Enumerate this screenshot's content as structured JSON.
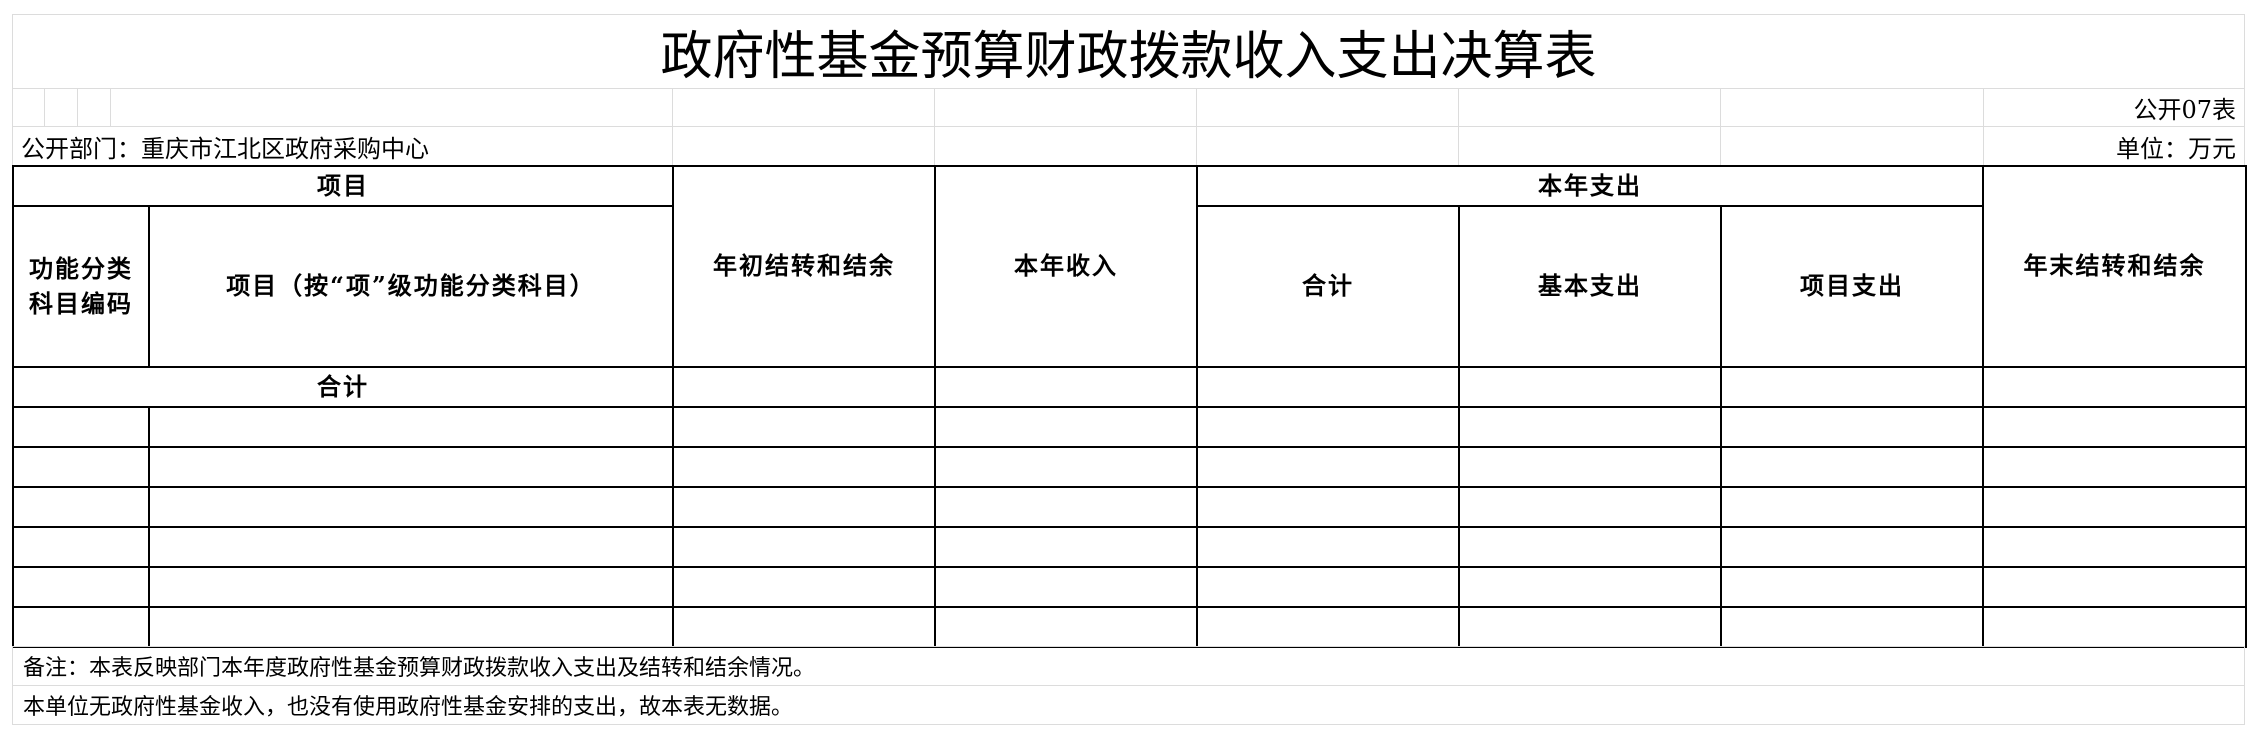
{
  "title": "政府性基金预算财政拨款收入支出决算表",
  "table_code": "公开07表",
  "department": "公开部门：重庆市江北区政府采购中心",
  "unit": "单位：万元",
  "headers": {
    "item_group": "项目",
    "func_code": "功能分类科目编码",
    "item_name": "项目（按“项”级功能分类科目）",
    "begin_balance": "年初结转和结余",
    "income": "本年收入",
    "expense_group": "本年支出",
    "expense_total": "合计",
    "basic_expense": "基本支出",
    "project_expense": "项目支出",
    "end_balance": "年末结转和结余"
  },
  "total_row_label": "合计",
  "rows": [
    [
      "",
      "",
      "",
      "",
      "",
      "",
      "",
      ""
    ],
    [
      "",
      "",
      "",
      "",
      "",
      "",
      "",
      ""
    ],
    [
      "",
      "",
      "",
      "",
      "",
      "",
      "",
      ""
    ],
    [
      "",
      "",
      "",
      "",
      "",
      "",
      "",
      ""
    ],
    [
      "",
      "",
      "",
      "",
      "",
      "",
      "",
      ""
    ],
    [
      "",
      "",
      "",
      "",
      "",
      "",
      "",
      ""
    ]
  ],
  "notes": [
    "备注：本表反映部门本年度政府性基金预算财政拨款收入支出及结转和结余情况。",
    "本单位无政府性基金收入，也没有使用政府性基金安排的支出，故本表无数据。"
  ]
}
